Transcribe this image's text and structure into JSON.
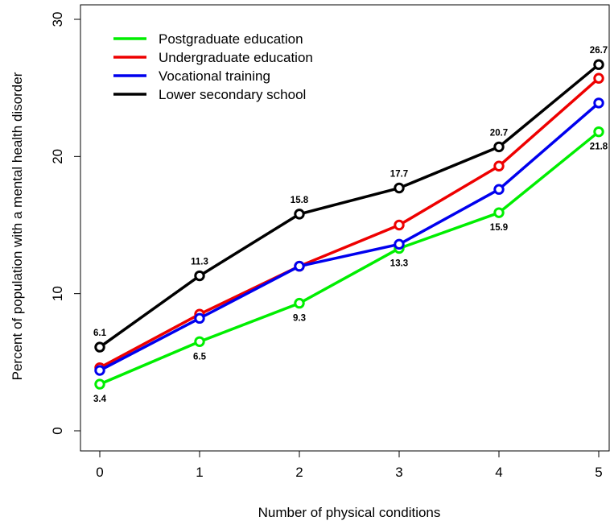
{
  "chart_data": {
    "type": "line",
    "title": "",
    "xlabel": "Number of physical conditions",
    "ylabel": "Percent of population with a mental health disorder",
    "x": [
      0,
      1,
      2,
      3,
      4,
      5
    ],
    "xlim": [
      0,
      5
    ],
    "ylim": [
      0,
      30
    ],
    "yticks": [
      0,
      10,
      20,
      30
    ],
    "grid": false,
    "legend_position": "top-left",
    "series": [
      {
        "name": "Postgraduate education",
        "color": "#00ee00",
        "values": [
          3.4,
          6.5,
          9.3,
          13.3,
          15.9,
          21.8
        ],
        "labels": [
          "3.4",
          "6.5",
          "9.3",
          "13.3",
          "15.9",
          "21.8"
        ],
        "label_position": "below"
      },
      {
        "name": "Undergraduate education",
        "color": "#ee0000",
        "values": [
          4.6,
          8.5,
          12.0,
          15.0,
          19.3,
          25.7
        ]
      },
      {
        "name": "Vocational training",
        "color": "#0000ee",
        "values": [
          4.4,
          8.2,
          12.0,
          13.6,
          17.6,
          23.9
        ]
      },
      {
        "name": "Lower secondary school",
        "color": "#000000",
        "values": [
          6.1,
          11.3,
          15.8,
          17.7,
          20.7,
          26.7
        ],
        "labels": [
          "6.1",
          "11.3",
          "15.8",
          "17.7",
          "20.7",
          "26.7"
        ],
        "label_position": "above"
      }
    ]
  }
}
